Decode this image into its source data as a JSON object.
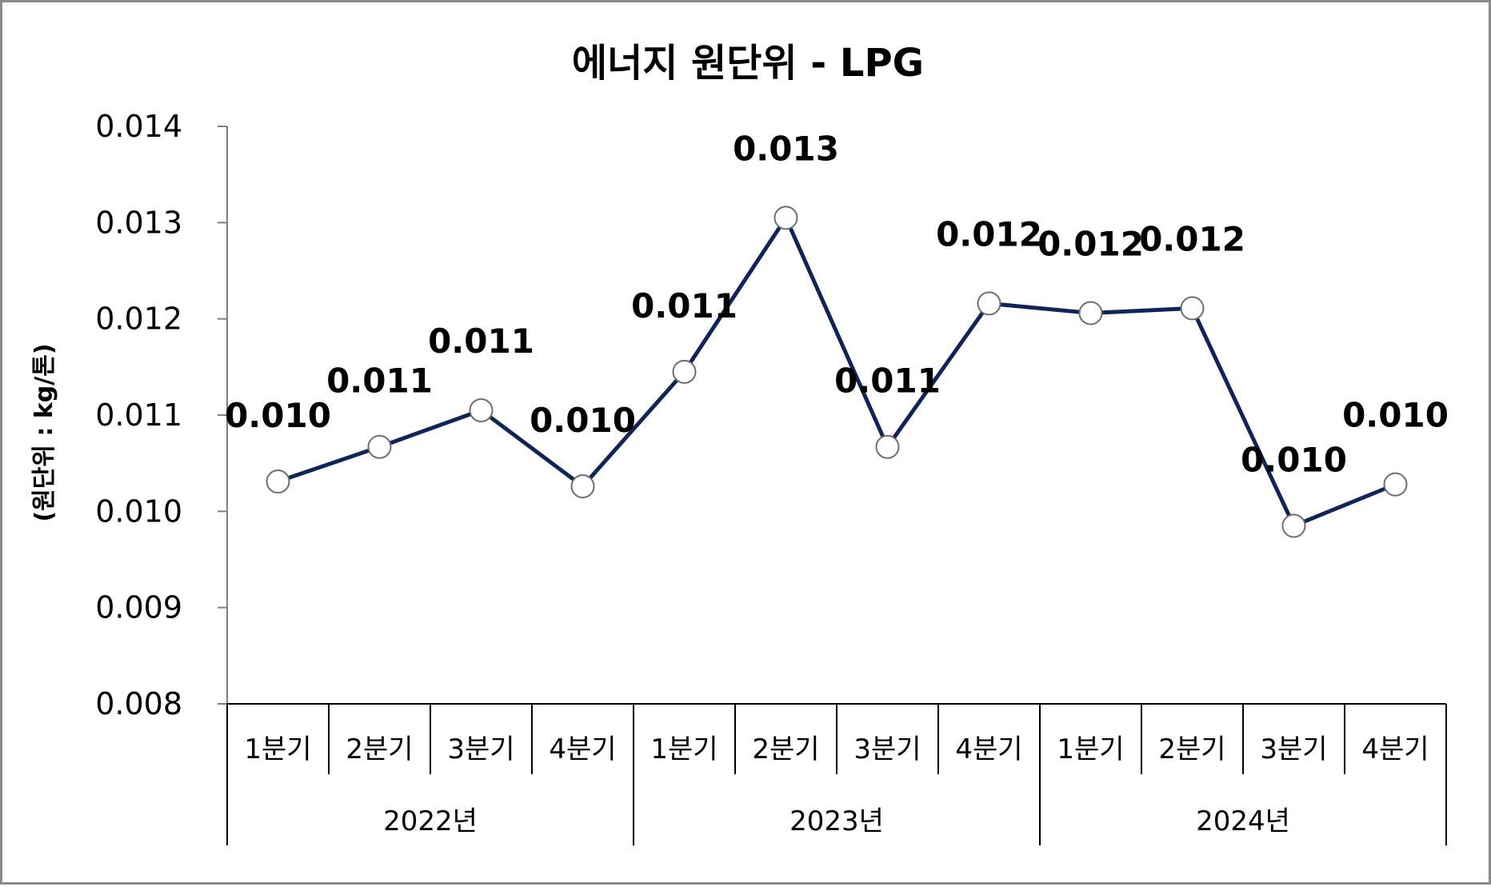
{
  "chart_data": {
    "type": "line",
    "title": "에너지 원단위 - LPG",
    "ylabel": "(원단위 : kg/톤)",
    "xlabel": "",
    "ylim": [
      0.008,
      0.014
    ],
    "yticks": [
      "0.008",
      "0.009",
      "0.010",
      "0.011",
      "0.012",
      "0.013",
      "0.014"
    ],
    "ytick_values": [
      0.008,
      0.009,
      0.01,
      0.011,
      0.012,
      0.013,
      0.014
    ],
    "categories": [
      "1분기",
      "2분기",
      "3분기",
      "4분기",
      "1분기",
      "2분기",
      "3분기",
      "4분기",
      "1분기",
      "2분기",
      "3분기",
      "4분기"
    ],
    "groups": [
      {
        "label": "2022년",
        "count": 4
      },
      {
        "label": "2023년",
        "count": 4
      },
      {
        "label": "2024년",
        "count": 4
      }
    ],
    "series": [
      {
        "name": "LPG",
        "values": [
          0.01031,
          0.01067,
          0.01105,
          0.01026,
          0.01145,
          0.01305,
          0.01067,
          0.01216,
          0.01206,
          0.01211,
          0.00985,
          0.01028
        ],
        "labels": [
          "0.010",
          "0.011",
          "0.011",
          "0.010",
          "0.011",
          "0.013",
          "0.011",
          "0.012",
          "0.012",
          "0.012",
          "0.010",
          "0.010"
        ]
      }
    ],
    "line_color": "#0f2557",
    "marker_fill": "#ffffff",
    "marker_stroke": "#6e6e6e",
    "grid": false
  }
}
